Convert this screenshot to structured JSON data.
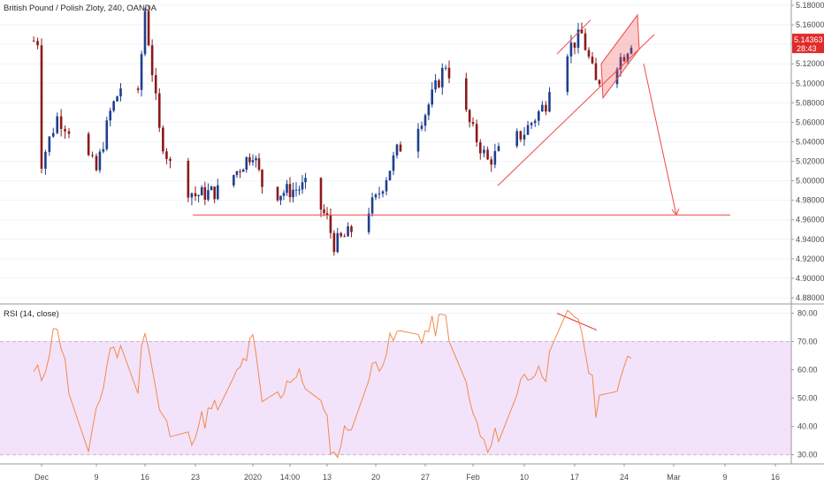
{
  "header": {
    "symbol_title": "British Pound / Polish Zloty, 240, OANDA"
  },
  "rsi_panel": {
    "title": "RSI (14, close)"
  },
  "price_tag": {
    "price": "5.14363",
    "countdown": "28:43",
    "color": "#e02b2b"
  },
  "colors": {
    "up": "#1e3f8f",
    "down": "#8b1a1a",
    "rsi_line": "#f5894a",
    "rsi_band": "#f2e3fb",
    "drawing": "#ef4747"
  },
  "chart_data": [
    {
      "type": "candlestick",
      "title": "British Pound / Polish Zloty, 240, OANDA",
      "ylim": [
        4.88,
        5.18
      ],
      "y_ticks": [
        "5.18000",
        "5.16000",
        "5.14000",
        "5.12000",
        "5.10000",
        "5.08000",
        "5.06000",
        "5.04000",
        "5.02000",
        "5.00000",
        "4.98000",
        "4.96000",
        "4.94000",
        "4.92000",
        "4.90000",
        "4.88000"
      ],
      "x_ticks": [
        "Dec",
        "9",
        "16",
        "23",
        "2020",
        "14:00",
        "13",
        "20",
        "27",
        "Feb",
        "10",
        "17",
        "24",
        "Mar",
        "9",
        "16"
      ],
      "anchors": [
        {
          "date": "Dec 2",
          "close": 5.02
        },
        {
          "date": "Dec 4",
          "close": 5.065
        },
        {
          "date": "Dec 6",
          "close": 5.05
        },
        {
          "date": "Dec 9",
          "close": 5.01
        },
        {
          "date": "Dec 11",
          "close": 5.07
        },
        {
          "date": "Dec 13",
          "close": 5.105
        },
        {
          "date": "Dec 15",
          "close": 5.085
        },
        {
          "date": "Dec 16",
          "close": 5.175
        },
        {
          "date": "Dec 18",
          "close": 5.05
        },
        {
          "date": "Dec 20",
          "close": 5.005
        },
        {
          "date": "Dec 23",
          "close": 4.985
        },
        {
          "date": "Dec 27",
          "close": 4.99
        },
        {
          "date": "Jan 1",
          "close": 5.03
        },
        {
          "date": "Jan 3",
          "close": 4.985
        },
        {
          "date": "Jan 7",
          "close": 4.99
        },
        {
          "date": "Jan 10",
          "close": 4.995
        },
        {
          "date": "Jan 13",
          "close": 4.96
        },
        {
          "date": "Jan 14",
          "close": 4.935
        },
        {
          "date": "Jan 16",
          "close": 4.945
        },
        {
          "date": "Jan 20",
          "close": 4.98
        },
        {
          "date": "Jan 23",
          "close": 5.03
        },
        {
          "date": "Jan 27",
          "close": 5.07
        },
        {
          "date": "Jan 30",
          "close": 5.12
        },
        {
          "date": "Feb 3",
          "close": 5.05
        },
        {
          "date": "Feb 5",
          "close": 5.02
        },
        {
          "date": "Feb 10",
          "close": 5.05
        },
        {
          "date": "Feb 13",
          "close": 5.08
        },
        {
          "date": "Feb 14",
          "close": 5.12
        },
        {
          "date": "Feb 18",
          "close": 5.15
        },
        {
          "date": "Feb 20",
          "close": 5.1
        },
        {
          "date": "Feb 24",
          "close": 5.13
        },
        {
          "date": "Feb 25",
          "close": 5.1436
        }
      ],
      "horizontal_level": 4.965,
      "current_price": 5.14363
    },
    {
      "type": "line",
      "title": "RSI (14, close)",
      "ylim": [
        28,
        82
      ],
      "y_ticks": [
        "80.00",
        "70.00",
        "60.00",
        "50.00",
        "40.00",
        "30.00"
      ],
      "band": [
        30,
        70
      ],
      "anchors": [
        {
          "date": "Dec 2",
          "value": 58
        },
        {
          "date": "Dec 4",
          "value": 77
        },
        {
          "date": "Dec 6",
          "value": 45
        },
        {
          "date": "Dec 8",
          "value": 30
        },
        {
          "date": "Dec 11",
          "value": 68
        },
        {
          "date": "Dec 13",
          "value": 65
        },
        {
          "date": "Dec 15",
          "value": 55
        },
        {
          "date": "Dec 16",
          "value": 77
        },
        {
          "date": "Dec 18",
          "value": 45
        },
        {
          "date": "Dec 21",
          "value": 30
        },
        {
          "date": "Dec 23",
          "value": 40
        },
        {
          "date": "Dec 28",
          "value": 50
        },
        {
          "date": "Jan 1",
          "value": 70
        },
        {
          "date": "Jan 3",
          "value": 42
        },
        {
          "date": "Jan 7",
          "value": 58
        },
        {
          "date": "Jan 11",
          "value": 55
        },
        {
          "date": "Jan 13",
          "value": 40
        },
        {
          "date": "Jan 14",
          "value": 29
        },
        {
          "date": "Jan 16",
          "value": 40
        },
        {
          "date": "Jan 20",
          "value": 62
        },
        {
          "date": "Jan 23",
          "value": 72
        },
        {
          "date": "Jan 27",
          "value": 73
        },
        {
          "date": "Jan 30",
          "value": 78
        },
        {
          "date": "Feb 3",
          "value": 44
        },
        {
          "date": "Feb 5",
          "value": 30
        },
        {
          "date": "Feb 10",
          "value": 58
        },
        {
          "date": "Feb 13",
          "value": 60
        },
        {
          "date": "Feb 14",
          "value": 80
        },
        {
          "date": "Feb 18",
          "value": 74
        },
        {
          "date": "Feb 20",
          "value": 47
        },
        {
          "date": "Feb 24",
          "value": 60
        },
        {
          "date": "Feb 25",
          "value": 62
        }
      ]
    }
  ]
}
